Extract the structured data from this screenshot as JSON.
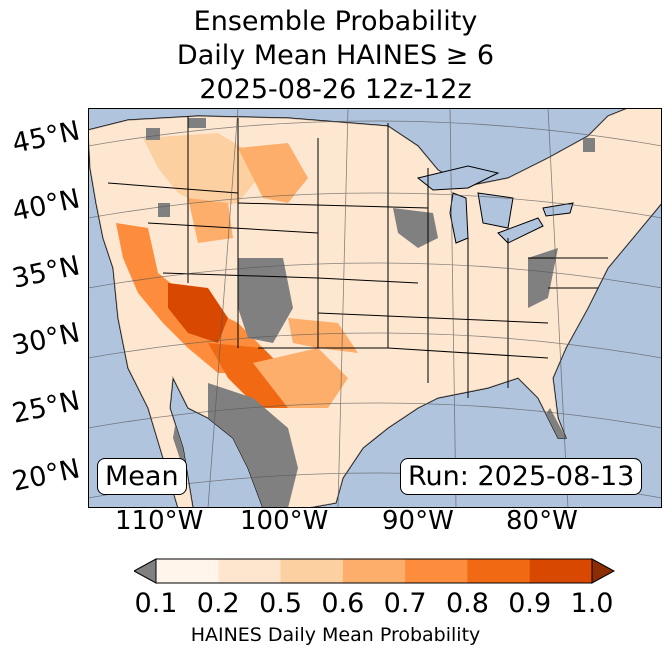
{
  "title": {
    "line1": "Ensemble Probability",
    "line2": "Daily Mean HAINES ≥ 6",
    "line3": "2025-08-26 12z-12z"
  },
  "map": {
    "region": "Contiguous United States",
    "lat_labels": [
      "45°N",
      "40°N",
      "35°N",
      "30°N",
      "25°N",
      "20°N"
    ],
    "lon_labels": [
      "110°W",
      "100°W",
      "90°W",
      "80°W"
    ],
    "stat_label": "Mean",
    "run_label": "Run: 2025-08-13",
    "colors": {
      "ocean": "#b0c4de",
      "land_low": "#fff5eb",
      "missing": "#808080",
      "border": "#000000"
    }
  },
  "colorbar": {
    "ticks": [
      "0.1",
      "0.2",
      "0.5",
      "0.6",
      "0.7",
      "0.8",
      "0.9",
      "1.0"
    ],
    "colors": [
      "#fff5eb",
      "#fee6ce",
      "#fdd0a2",
      "#fdae6b",
      "#fd8d3c",
      "#f16913",
      "#d94801",
      "#8c2d04"
    ],
    "under_color": "#808080",
    "label": "HAINES Daily Mean Probability"
  }
}
